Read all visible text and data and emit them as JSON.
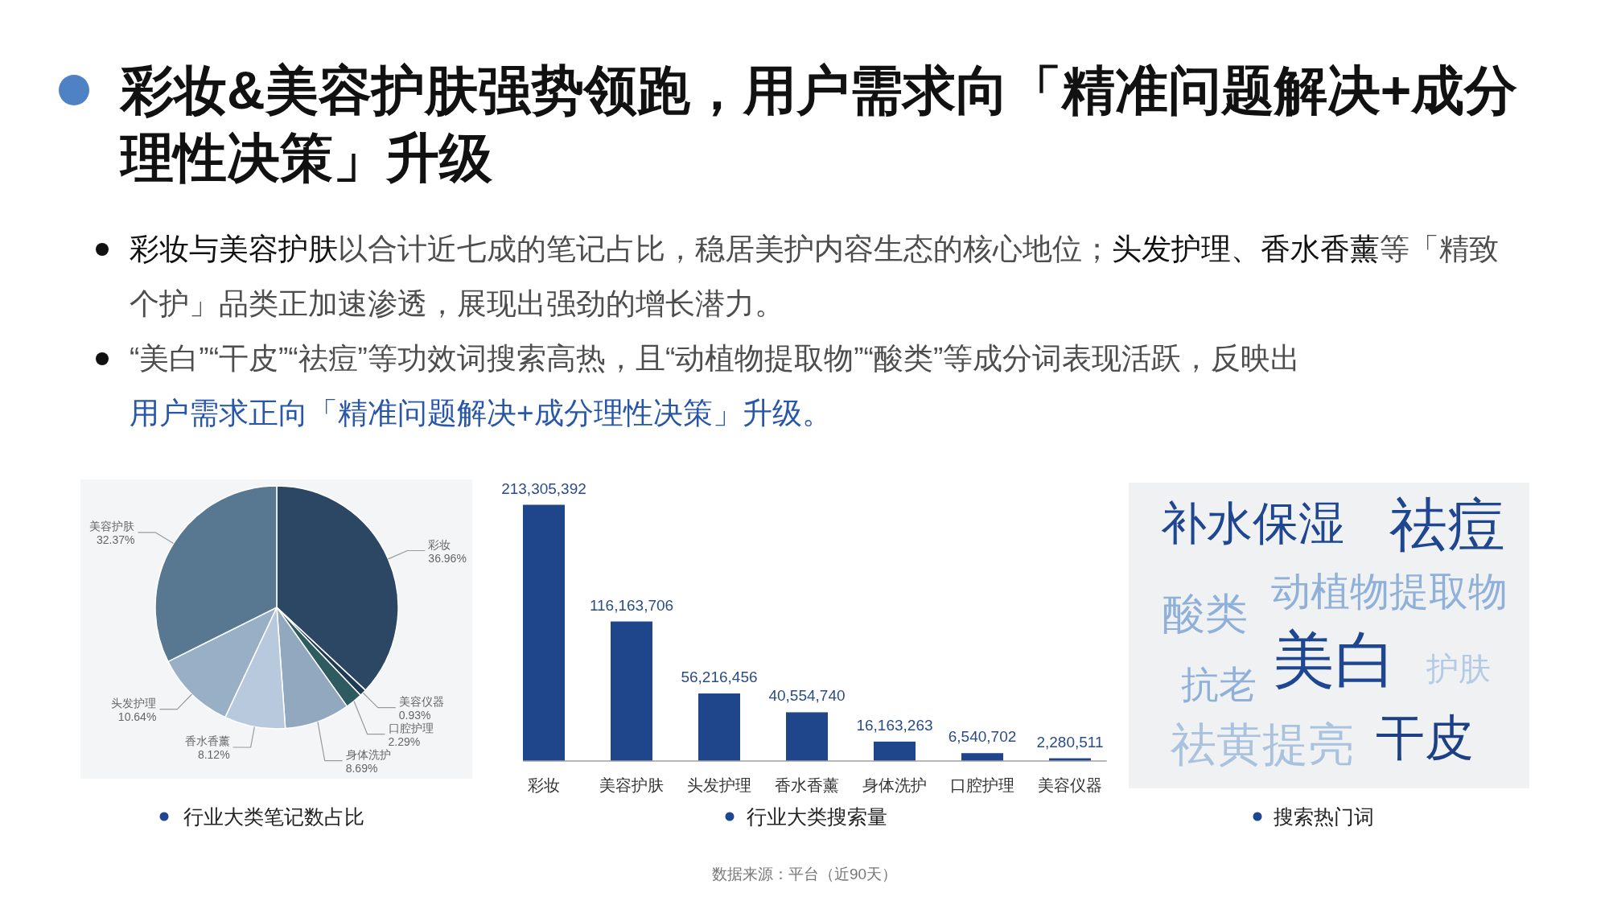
{
  "chart_data": [
    {
      "type": "other",
      "title": "彩妆&美容护肤强势领跑，用户需求向「精准问题解决+成分理性决策」升级",
      "annotations": [
        "**彩妆与美容护肤**以合计近七成的笔记占比，稳居美护内容生态的核心地位；**头发护理、香水香薰**等「精致个护」品类正加速渗透，展现出强劲的增长潜力。",
        "“美白”“干皮”“祛痘”等功效词搜索高热，且“动植物提取物”“酸类”等成分词表现活跃，反映出",
        "用户需求正向「精准问题解决+成分理性决策」升级。"
      ]
    },
    {
      "type": "pie",
      "title": "行业大类笔记数占比",
      "categories": [
        "彩妆",
        "美容仪器",
        "口腔护理",
        "身体洗护",
        "香水香薰",
        "头发护理",
        "美容护肤"
      ],
      "values": [
        36.96,
        0.93,
        2.29,
        8.69,
        8.12,
        10.64,
        32.37
      ],
      "value_labels": [
        "36.96%",
        "0.93%",
        "2.29%",
        "8.69%",
        "8.12%",
        "10.64%",
        "32.37%"
      ],
      "colors": [
        "#2b4763",
        "#1d3a56",
        "#2e5b5f",
        "#91a8bf",
        "#b8c9de",
        "#98afc6",
        "#587790"
      ]
    },
    {
      "type": "bar",
      "title": "行业大类搜索量",
      "categories": [
        "彩妆",
        "美容护肤",
        "头发护理",
        "香水香薰",
        "身体洗护",
        "口腔护理",
        "美容仪器"
      ],
      "values": [
        213305392,
        116163706,
        56216456,
        40554740,
        16163263,
        6540702,
        2280511
      ],
      "value_labels": [
        "213,305,392",
        "116,163,706",
        "56,216,456",
        "40,554,740",
        "16,163,263",
        "6,540,702",
        "2,280,511"
      ],
      "color": "#1f468b",
      "annotations": [
        "数据来源：平台（近90天）"
      ]
    },
    {
      "type": "other",
      "title": "搜索热门词",
      "annotations": [
        "补水保湿",
        "祛痘",
        "酸类",
        "动植物提取物",
        "抗老",
        "美白",
        "护肤",
        "祛黄提亮",
        "干皮"
      ]
    }
  ]
}
